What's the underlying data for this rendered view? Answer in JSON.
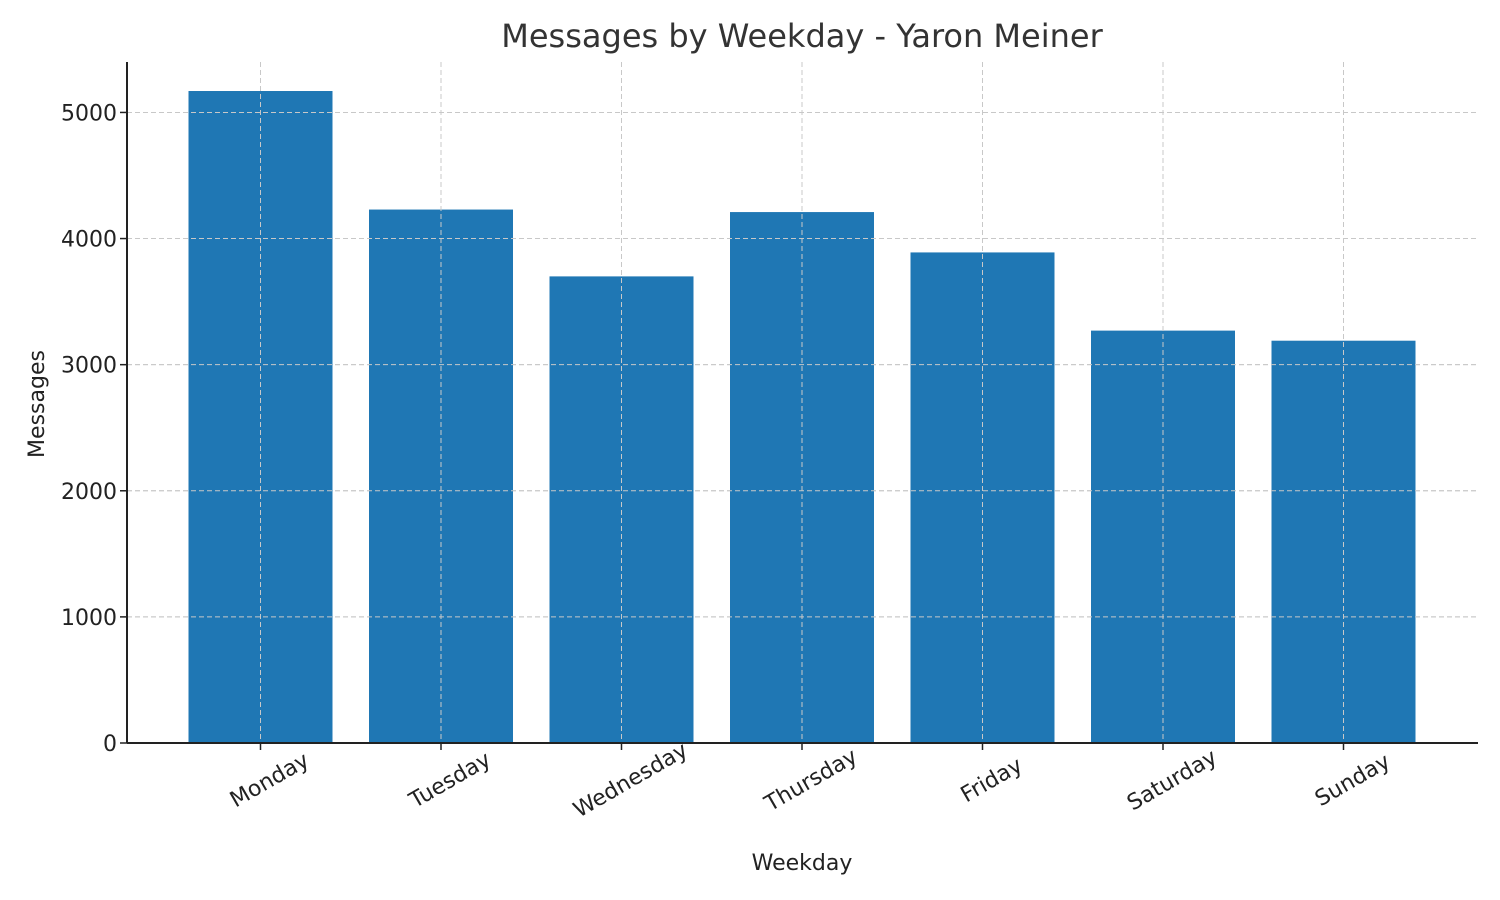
{
  "chart_data": {
    "type": "bar",
    "title": "Messages by Weekday - Yaron Meiner",
    "xlabel": "Weekday",
    "ylabel": "Messages",
    "categories": [
      "Monday",
      "Tuesday",
      "Wednesday",
      "Thursday",
      "Friday",
      "Saturday",
      "Sunday"
    ],
    "values": [
      5170,
      4230,
      3700,
      4210,
      3890,
      3270,
      3190
    ],
    "ylim": [
      0,
      5400
    ],
    "yticks": [
      0,
      1000,
      2000,
      3000,
      4000,
      5000
    ],
    "ytick_labels": [
      "0",
      "1000",
      "2000",
      "3000",
      "4000",
      "5000"
    ],
    "bar_color": "#1f77b4",
    "grid": true
  }
}
